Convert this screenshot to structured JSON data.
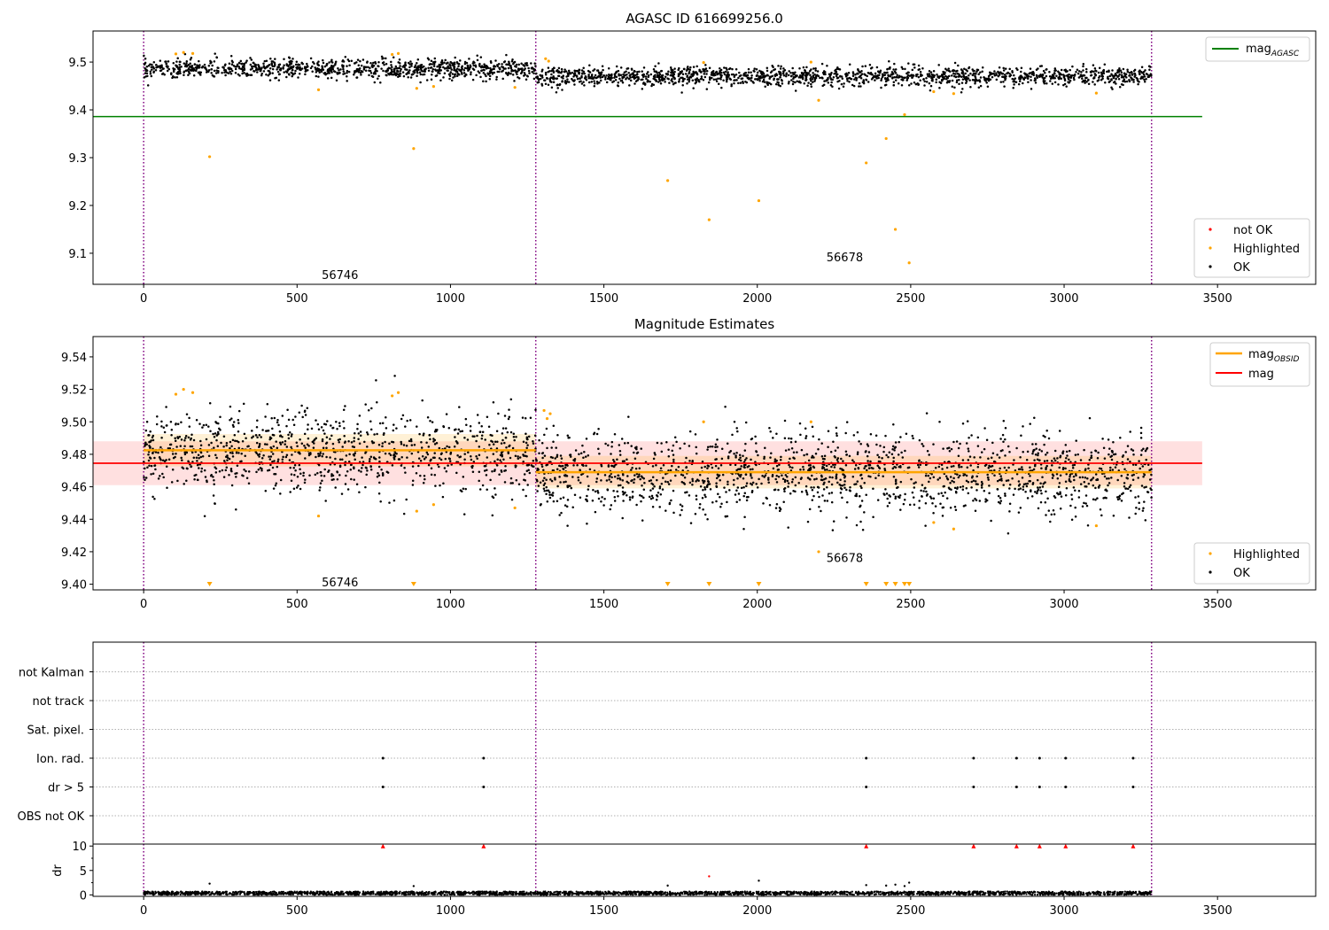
{
  "chart_data": [
    {
      "type": "scatter",
      "title": "AGASC ID 616699256.0",
      "xlim": [
        -165,
        3820
      ],
      "ylim": [
        9.035,
        9.565
      ],
      "xticks": [
        "0",
        "500",
        "1000",
        "1500",
        "2000",
        "2500",
        "3000",
        "3500"
      ],
      "yticks": [
        "9.1",
        "9.2",
        "9.3",
        "9.4",
        "9.5"
      ],
      "ytick_values": [
        9.1,
        9.2,
        9.3,
        9.4,
        9.5
      ],
      "obs_boundaries": [
        0,
        1278,
        3285
      ],
      "obs_labels": [
        {
          "text": "56746",
          "x": 640,
          "y": 9.055
        },
        {
          "text": "56678",
          "x": 2285,
          "y": 9.092
        }
      ],
      "hlines": [
        {
          "name": "mag_AGASC",
          "y": 9.386,
          "x": [
            -165,
            3450
          ],
          "color": "#008000"
        }
      ],
      "ok_segments": [
        {
          "x_start": 0,
          "x_end": 1278,
          "mean": 9.486,
          "std": 0.01
        },
        {
          "x_start": 1278,
          "x_end": 3285,
          "mean": 9.47,
          "std": 0.01
        }
      ],
      "highlighted": [
        {
          "x": 105,
          "y": 9.517
        },
        {
          "x": 130,
          "y": 9.52
        },
        {
          "x": 160,
          "y": 9.518
        },
        {
          "x": 215,
          "y": 9.302
        },
        {
          "x": 570,
          "y": 9.442
        },
        {
          "x": 810,
          "y": 9.516
        },
        {
          "x": 830,
          "y": 9.518
        },
        {
          "x": 880,
          "y": 9.319
        },
        {
          "x": 890,
          "y": 9.445
        },
        {
          "x": 945,
          "y": 9.449
        },
        {
          "x": 1210,
          "y": 9.447
        },
        {
          "x": 1310,
          "y": 9.507
        },
        {
          "x": 1320,
          "y": 9.502
        },
        {
          "x": 1708,
          "y": 9.252
        },
        {
          "x": 1825,
          "y": 9.499
        },
        {
          "x": 1843,
          "y": 9.17
        },
        {
          "x": 2005,
          "y": 9.21
        },
        {
          "x": 2175,
          "y": 9.5
        },
        {
          "x": 2200,
          "y": 9.42
        },
        {
          "x": 2355,
          "y": 9.289
        },
        {
          "x": 2420,
          "y": 9.34
        },
        {
          "x": 2450,
          "y": 9.15
        },
        {
          "x": 2480,
          "y": 9.39
        },
        {
          "x": 2495,
          "y": 9.08
        },
        {
          "x": 2575,
          "y": 9.438
        },
        {
          "x": 2640,
          "y": 9.434
        },
        {
          "x": 3105,
          "y": 9.435
        }
      ],
      "legend_top": [
        {
          "label": "mag",
          "subscript": "AGASC",
          "color": "#008000"
        }
      ],
      "legend_bottom": [
        {
          "label": "not OK",
          "color": "#ff0000"
        },
        {
          "label": "Highlighted",
          "color": "#ffa500"
        },
        {
          "label": "OK",
          "color": "#000000"
        }
      ]
    },
    {
      "type": "scatter",
      "title": "Magnitude Estimates",
      "xlim": [
        -165,
        3820
      ],
      "ylim": [
        9.3965,
        9.5525
      ],
      "xticks": [
        "0",
        "500",
        "1000",
        "1500",
        "2000",
        "2500",
        "3000",
        "3500"
      ],
      "yticks": [
        "9.40",
        "9.42",
        "9.44",
        "9.46",
        "9.48",
        "9.50",
        "9.52",
        "9.54"
      ],
      "ytick_values": [
        9.4,
        9.42,
        9.44,
        9.46,
        9.48,
        9.5,
        9.52,
        9.54
      ],
      "obs_boundaries": [
        0,
        1278,
        3285
      ],
      "obs_labels": [
        {
          "text": "56746",
          "x": 640,
          "y": 9.4015
        },
        {
          "text": "56678",
          "x": 2285,
          "y": 9.4165
        }
      ],
      "mag": {
        "value": 9.4745,
        "band": [
          9.461,
          9.488
        ],
        "x": [
          -165,
          3450
        ],
        "color": "#ff0000"
      },
      "mag_obsid": [
        {
          "x_start": 0,
          "x_end": 1278,
          "value": 9.4825,
          "band": [
            9.4725,
            9.4925
          ]
        },
        {
          "x_start": 1278,
          "x_end": 3285,
          "value": 9.469,
          "band": [
            9.459,
            9.479
          ]
        }
      ],
      "ok_segments": [
        {
          "x_start": 0,
          "x_end": 1278,
          "mean": 9.481,
          "std": 0.0125
        },
        {
          "x_start": 1278,
          "x_end": 3285,
          "mean": 9.468,
          "std": 0.0125
        }
      ],
      "highlighted": [
        {
          "x": 105,
          "y": 9.517
        },
        {
          "x": 130,
          "y": 9.52
        },
        {
          "x": 160,
          "y": 9.518
        },
        {
          "x": 570,
          "y": 9.442
        },
        {
          "x": 810,
          "y": 9.516
        },
        {
          "x": 830,
          "y": 9.518
        },
        {
          "x": 890,
          "y": 9.445
        },
        {
          "x": 945,
          "y": 9.449
        },
        {
          "x": 1210,
          "y": 9.447
        },
        {
          "x": 1305,
          "y": 9.507
        },
        {
          "x": 1315,
          "y": 9.502
        },
        {
          "x": 1325,
          "y": 9.505
        },
        {
          "x": 1825,
          "y": 9.5
        },
        {
          "x": 2175,
          "y": 9.5
        },
        {
          "x": 2200,
          "y": 9.42
        },
        {
          "x": 2575,
          "y": 9.438
        },
        {
          "x": 2640,
          "y": 9.434
        },
        {
          "x": 3105,
          "y": 9.436
        }
      ],
      "below_range_markers": [
        215,
        880,
        1708,
        1843,
        2005,
        2355,
        2420,
        2450,
        2480,
        2495
      ],
      "legend_top": [
        {
          "label": "mag",
          "subscript": "OBSID",
          "color": "#ffa500"
        },
        {
          "label": "mag",
          "color": "#ff0000"
        }
      ],
      "legend_bottom": [
        {
          "label": "Highlighted",
          "color": "#ffa500"
        },
        {
          "label": "OK",
          "color": "#000000"
        }
      ]
    },
    {
      "type": "scatter",
      "title": "",
      "xlim": [
        -165,
        3820
      ],
      "categories": [
        "not Kalman",
        "not track",
        "Sat. pixel.",
        "Ion. rad.",
        "dr > 5",
        "OBS not OK"
      ],
      "obs_boundaries": [
        0,
        1278,
        3285
      ],
      "flag_points": {
        "Ion. rad.": [
          780,
          1108,
          2355,
          2705,
          2845,
          2920,
          3005,
          3225
        ],
        "dr > 5": [
          780,
          1108,
          2355,
          2705,
          2845,
          2920,
          3005,
          3225
        ]
      }
    },
    {
      "type": "scatter",
      "title": "",
      "ylabel": "dr",
      "xlim": [
        -165,
        3820
      ],
      "ylim": [
        -0.3,
        10.4
      ],
      "xticks": [
        "0",
        "500",
        "1000",
        "1500",
        "2000",
        "2500",
        "3000",
        "3500"
      ],
      "yticks": [
        "0",
        "5",
        "10"
      ],
      "ytick_values": [
        0,
        5,
        10
      ],
      "obs_boundaries": [
        0,
        1278,
        3285
      ],
      "baseline": {
        "mean": 0.35,
        "spread": 0.35,
        "x": [
          0,
          3285
        ]
      },
      "capped_markers": [
        780,
        1108,
        2355,
        2705,
        2845,
        2920,
        3005,
        3225
      ],
      "outliers": [
        {
          "x": 215,
          "y": 2.3
        },
        {
          "x": 880,
          "y": 1.8
        },
        {
          "x": 1708,
          "y": 1.9
        },
        {
          "x": 1843,
          "y": 3.8
        },
        {
          "x": 2005,
          "y": 2.9
        },
        {
          "x": 2355,
          "y": 2.0
        },
        {
          "x": 2420,
          "y": 1.9
        },
        {
          "x": 2450,
          "y": 2.1
        },
        {
          "x": 2480,
          "y": 1.8
        },
        {
          "x": 2495,
          "y": 2.5
        }
      ]
    }
  ]
}
